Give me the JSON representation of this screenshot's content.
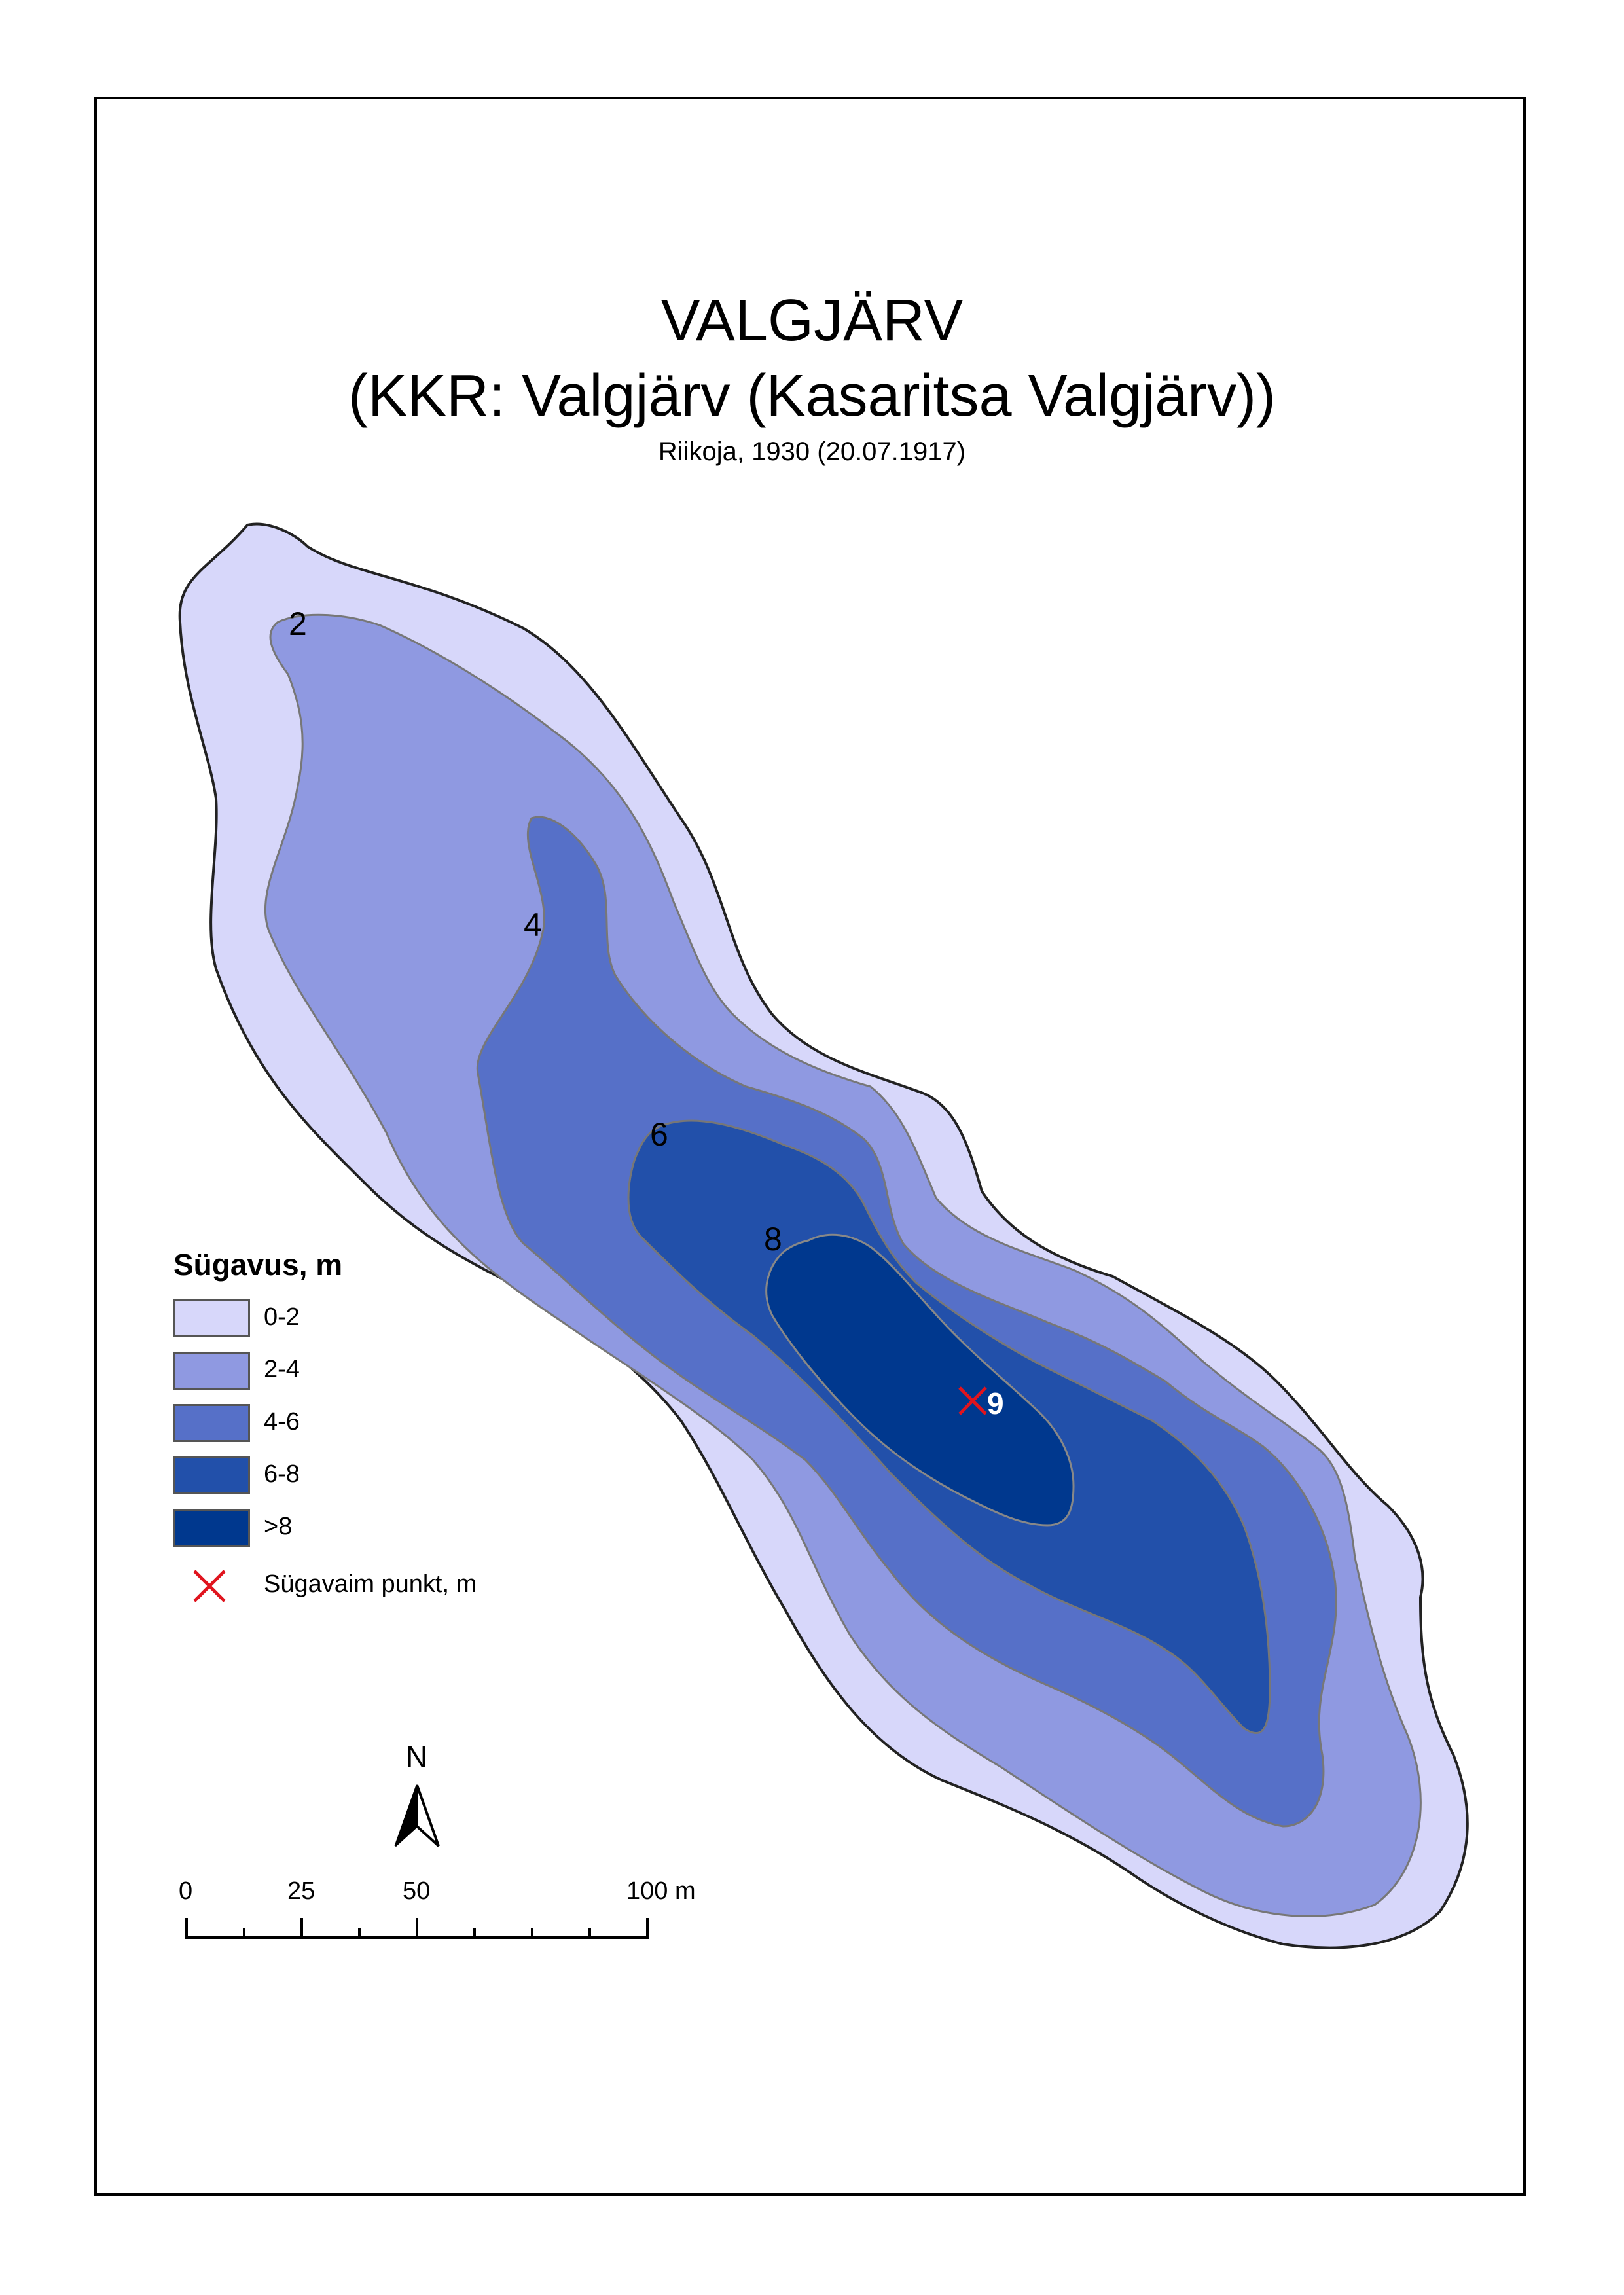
{
  "title": "VALGJÄRV",
  "subtitle": "(KKR: Valgjärv (Kasaritsa Valgjärv))",
  "source": "Riikoja, 1930 (20.07.1917)",
  "colors": {
    "depth_0_2": "#d7d7fa",
    "depth_2_4": "#8f99e1",
    "depth_4_6": "#5670c8",
    "depth_6_8": "#2250aa",
    "depth_gt8": "#00388e",
    "deepest_marker": "#e0141e"
  },
  "contour_labels": {
    "c2": "2",
    "c4": "4",
    "c6": "6",
    "c8": "8"
  },
  "deepest_point": {
    "value": "9"
  },
  "legend": {
    "title": "Sügavus, m",
    "items": [
      {
        "label": "0-2",
        "color": "#d7d7fa"
      },
      {
        "label": "2-4",
        "color": "#8f99e1"
      },
      {
        "label": "4-6",
        "color": "#5670c8"
      },
      {
        "label": "6-8",
        "color": "#2250aa"
      },
      {
        "label": ">8",
        "color": "#00388e"
      }
    ],
    "deepest_label": "Sügavaim punkt, m"
  },
  "north_arrow": {
    "label": "N",
    "icon": "north-arrow-icon"
  },
  "scale_bar": {
    "labels": [
      "0",
      "25",
      "50",
      "100 m"
    ]
  }
}
